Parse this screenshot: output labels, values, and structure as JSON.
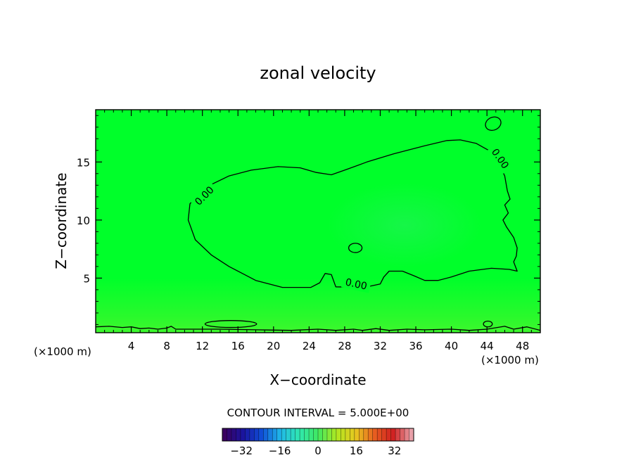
{
  "chart_data": {
    "type": "contour",
    "title": "zonal velocity",
    "xlabel": "X−coordinate",
    "ylabel": "Z−coordinate",
    "x_unit_left": "(×1000 m)",
    "x_unit_right": "(×1000 m)",
    "xlim": [
      0,
      50
    ],
    "ylim": [
      0.3,
      19.5
    ],
    "x_ticks": [
      4,
      8,
      12,
      16,
      20,
      24,
      28,
      32,
      36,
      40,
      44,
      48
    ],
    "y_ticks": [
      5,
      10,
      15
    ],
    "fill_color": "#00ff2a",
    "contour_label": "0.00",
    "contour_interval_text": "CONTOUR INTERVAL = 5.000E+00",
    "colorbar": {
      "range": [
        -40,
        40
      ],
      "ticks": [
        -32,
        -16,
        0,
        16,
        32
      ],
      "colors": [
        "#3a0060",
        "#1a14a0",
        "#1050d8",
        "#20b8e8",
        "#30e8b0",
        "#40e860",
        "#b0e820",
        "#e8c820",
        "#e86020",
        "#d02020",
        "#e8a0a8"
      ]
    },
    "contours": {
      "main": [
        [
          10.6,
          11.4
        ],
        [
          12.3,
          12.8
        ],
        [
          15,
          13.8
        ],
        [
          17.5,
          14.3
        ],
        [
          20.5,
          14.6
        ],
        [
          23,
          14.5
        ],
        [
          24.8,
          14.1
        ],
        [
          26.5,
          13.9
        ],
        [
          28,
          14.3
        ],
        [
          30.5,
          15
        ],
        [
          33.5,
          15.7
        ],
        [
          37,
          16.4
        ],
        [
          39.5,
          16.85
        ],
        [
          41,
          16.9
        ],
        [
          42.8,
          16.6
        ],
        [
          44.2,
          16
        ],
        [
          45.2,
          15.1
        ],
        [
          46,
          13.8
        ],
        [
          46.3,
          12.5
        ],
        [
          46.6,
          11.8
        ],
        [
          46,
          11.3
        ],
        [
          46.4,
          10.6
        ],
        [
          45.8,
          10
        ],
        [
          46.2,
          9.4
        ],
        [
          47,
          8.5
        ],
        [
          47.4,
          7.6
        ],
        [
          47.3,
          6.9
        ],
        [
          47,
          6.4
        ],
        [
          47.4,
          5.6
        ],
        [
          46.5,
          5.75
        ],
        [
          44.5,
          5.85
        ],
        [
          42,
          5.6
        ],
        [
          40,
          5.1
        ],
        [
          38.5,
          4.8
        ],
        [
          37,
          4.8
        ],
        [
          35.8,
          5.2
        ],
        [
          34.5,
          5.6
        ],
        [
          33,
          5.6
        ],
        [
          32.4,
          5.1
        ],
        [
          32,
          4.5
        ],
        [
          30.2,
          4.2
        ],
        [
          27,
          4.25
        ],
        [
          26.5,
          5.3
        ],
        [
          25.8,
          5.4
        ],
        [
          25.2,
          4.6
        ],
        [
          24.2,
          4.2
        ],
        [
          21,
          4.2
        ],
        [
          18,
          4.8
        ],
        [
          15,
          6
        ],
        [
          13,
          7
        ],
        [
          11.2,
          8.3
        ],
        [
          10.4,
          10
        ]
      ],
      "loop_top_right": {
        "cx": 44.7,
        "cy": 18.3,
        "rx": 0.9,
        "ry": 0.55,
        "rot": 25
      },
      "loop_mid": {
        "cx": 29.2,
        "cy": 7.6,
        "rx": 0.75,
        "ry": 0.4,
        "rot": 0
      },
      "loop_low_left": {
        "cx": 15.2,
        "cy": 1.05,
        "rx": 2.9,
        "ry": 0.3,
        "rot": 0
      },
      "loop_low_right": {
        "cx": 44.1,
        "cy": 1.05,
        "rx": 0.5,
        "ry": 0.25,
        "rot": 0
      },
      "bottom": [
        [
          0,
          0.8
        ],
        [
          1.5,
          0.85
        ],
        [
          3,
          0.75
        ],
        [
          4,
          0.8
        ],
        [
          5,
          0.65
        ],
        [
          6,
          0.7
        ],
        [
          7,
          0.6
        ],
        [
          8,
          0.7
        ],
        [
          8.5,
          0.85
        ],
        [
          9,
          0.6
        ],
        [
          11,
          0.6
        ],
        [
          14,
          0.6
        ],
        [
          18,
          0.55
        ],
        [
          22,
          0.5
        ],
        [
          25,
          0.6
        ],
        [
          27,
          0.5
        ],
        [
          29,
          0.6
        ],
        [
          30,
          0.5
        ],
        [
          31.5,
          0.65
        ],
        [
          33,
          0.5
        ],
        [
          35,
          0.6
        ],
        [
          37,
          0.55
        ],
        [
          40,
          0.6
        ],
        [
          42,
          0.5
        ],
        [
          44,
          0.6
        ],
        [
          46,
          0.85
        ],
        [
          47,
          0.6
        ],
        [
          48.5,
          0.8
        ],
        [
          50,
          0.5
        ]
      ],
      "labels": [
        {
          "text": "0.00",
          "x": 12.2,
          "y": 12.1,
          "angle": -45
        },
        {
          "text": "0.00",
          "x": 45.5,
          "y": 15.3,
          "angle": 55
        },
        {
          "text": "0.00",
          "x": 29.3,
          "y": 4.5,
          "angle": 12
        }
      ]
    }
  }
}
